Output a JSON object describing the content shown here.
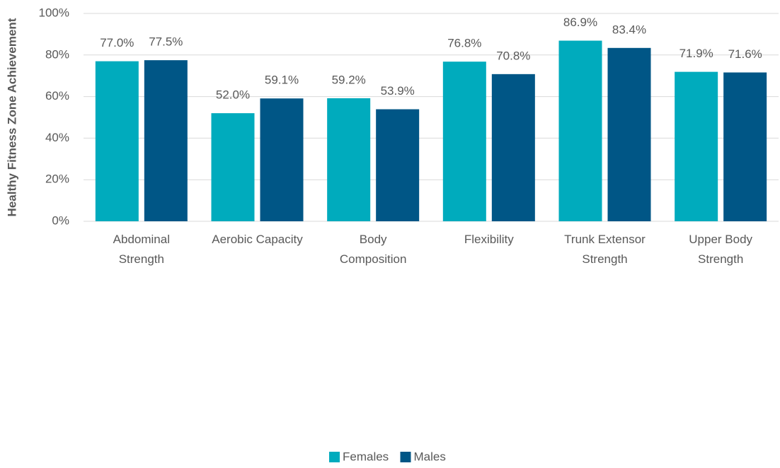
{
  "chart_data": {
    "type": "bar",
    "y_axis_label": "Healthy Fitness Zone Achievement",
    "categories": [
      "Abdominal\nStrength",
      "Aerobic Capacity",
      "Body\nComposition",
      "Flexibility",
      "Trunk Extensor\nStrength",
      "Upper Body\nStrength"
    ],
    "series": [
      {
        "name": "Females",
        "color": "#00abbd",
        "values": [
          77.0,
          52.0,
          59.2,
          76.8,
          86.9,
          71.9
        ],
        "value_labels": [
          "77.0%",
          "52.0%",
          "59.2%",
          "76.8%",
          "86.9%",
          "71.9%"
        ]
      },
      {
        "name": "Males",
        "color": "#005686",
        "values": [
          77.5,
          59.1,
          53.9,
          70.8,
          83.4,
          71.6
        ],
        "value_labels": [
          "77.5%",
          "59.1%",
          "53.9%",
          "70.8%",
          "83.4%",
          "71.6%"
        ]
      }
    ],
    "ylim": [
      0,
      100
    ],
    "yticks": [
      {
        "value": 0,
        "label": "0%"
      },
      {
        "value": 20,
        "label": "20%"
      },
      {
        "value": 40,
        "label": "40%"
      },
      {
        "value": 60,
        "label": "60%"
      },
      {
        "value": 80,
        "label": "80%"
      },
      {
        "value": 100,
        "label": "100%"
      }
    ],
    "grid": true,
    "legend": "bottom"
  }
}
